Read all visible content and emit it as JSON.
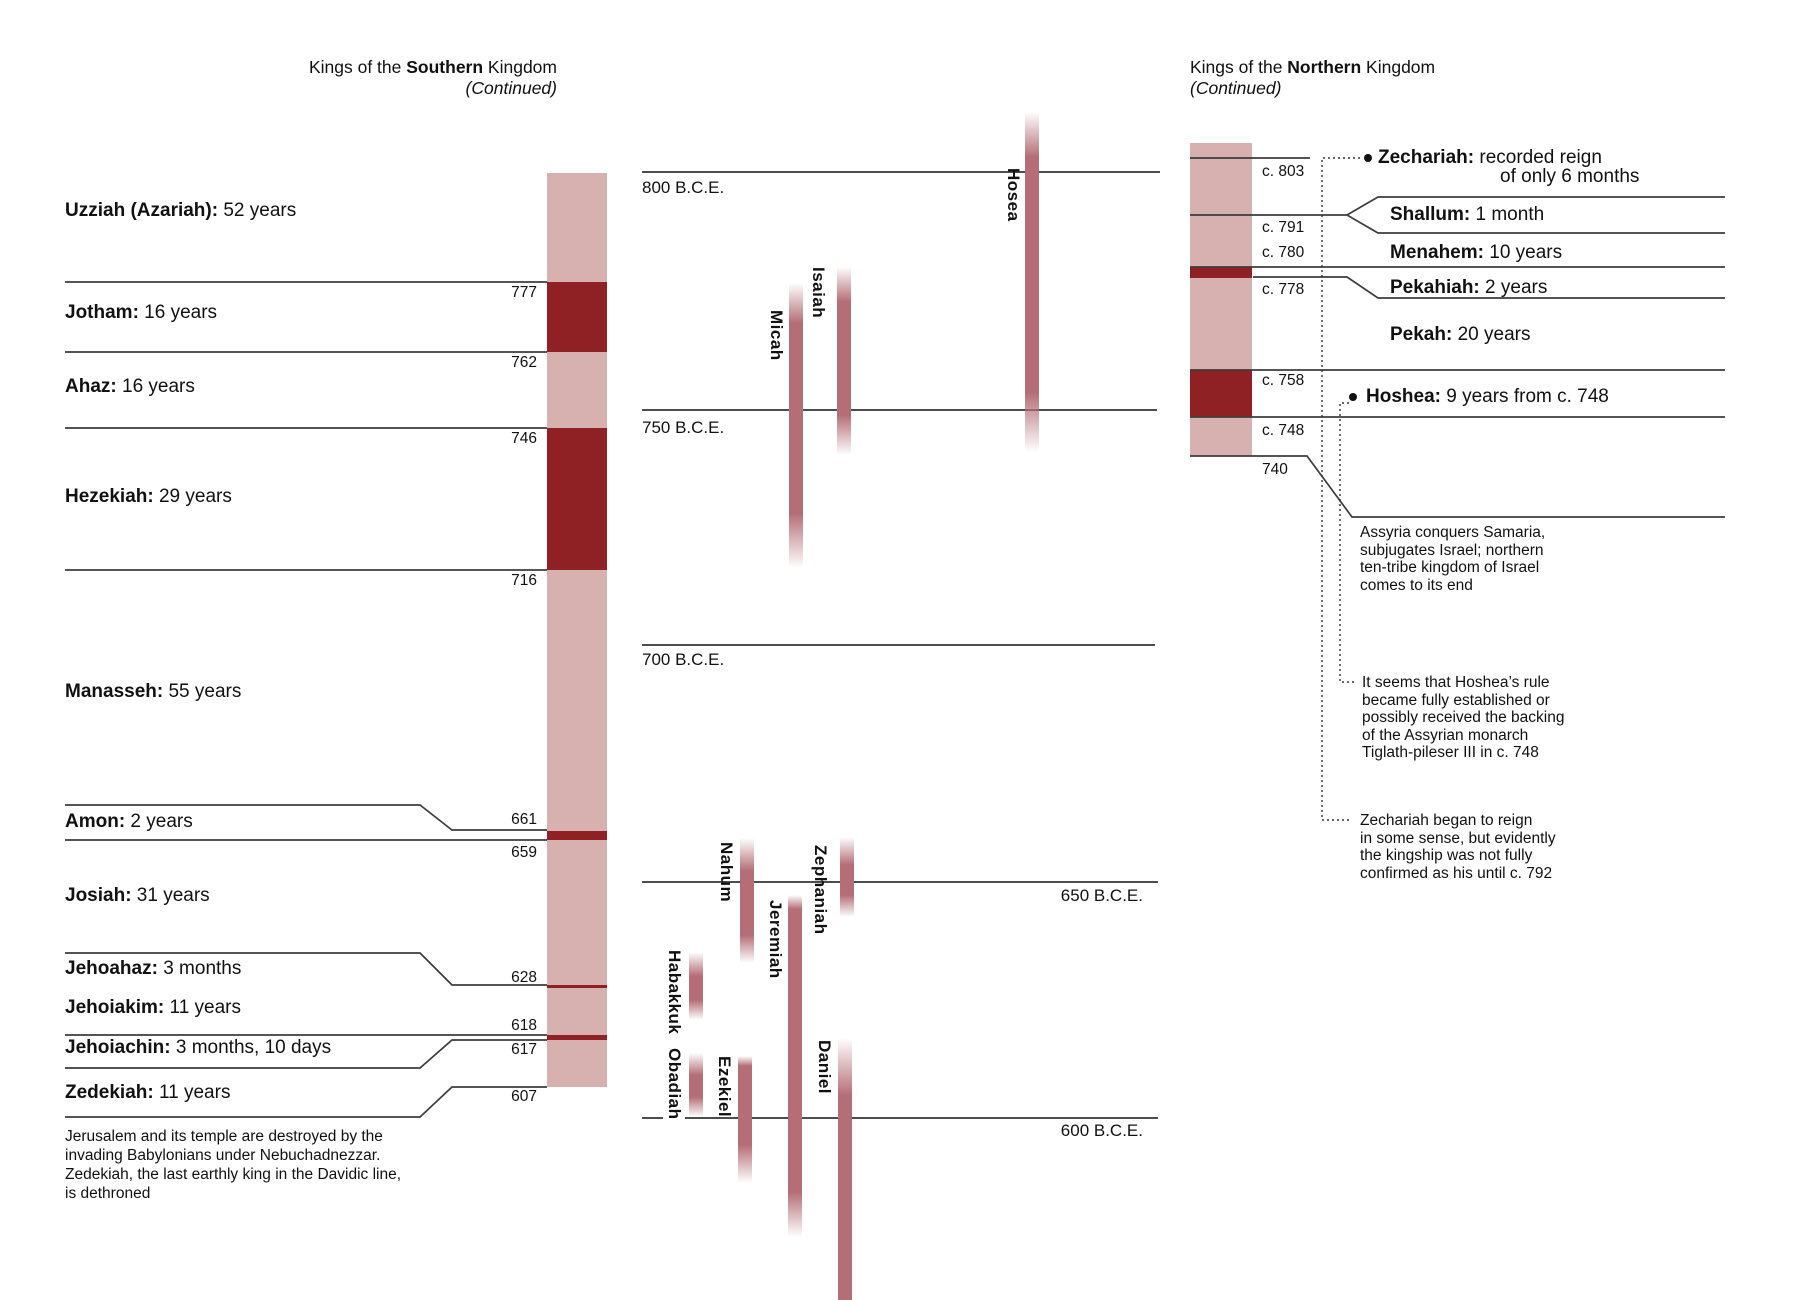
{
  "southern": {
    "title": {
      "prefix": "Kings of the ",
      "bold": "Southern",
      "suffix": " Kingdom",
      "line2": "(Continued)"
    },
    "kings": [
      {
        "name": "Uzziah (Azariah):",
        "detail": " 52 years"
      },
      {
        "name": "Jotham:",
        "detail": " 16 years"
      },
      {
        "name": "Ahaz:",
        "detail": " 16 years"
      },
      {
        "name": "Hezekiah:",
        "detail": " 29 years"
      },
      {
        "name": "Manasseh:",
        "detail": " 55 years"
      },
      {
        "name": "Amon:",
        "detail": " 2 years"
      },
      {
        "name": "Josiah:",
        "detail": " 31 years"
      },
      {
        "name": "Jehoahaz:",
        "detail": " 3 months"
      },
      {
        "name": "Jehoiakim:",
        "detail": " 11 years"
      },
      {
        "name": "Jehoiachin:",
        "detail": " 3 months, 10 days"
      },
      {
        "name": "Zedekiah:",
        "detail": " 11 years"
      }
    ],
    "dates": [
      "777",
      "762",
      "746",
      "716",
      "661",
      "659",
      "628",
      "618",
      "617",
      "607"
    ],
    "note": [
      "Jerusalem and its temple are destroyed by the",
      "invading Babylonians under Nebuchadnezzar.",
      "Zedekiah, the last earthly king in the Davidic line,",
      "is dethroned"
    ]
  },
  "northern": {
    "title": {
      "prefix": "Kings of the ",
      "bold": "Northern",
      "suffix": " Kingdom",
      "line2": "(Continued)"
    },
    "kings": [
      {
        "name": "Zechariah:",
        "detail": " recorded reign",
        "detail2": "of only 6 months"
      },
      {
        "name": "Shallum:",
        "detail": " 1 month"
      },
      {
        "name": "Menahem:",
        "detail": " 10 years"
      },
      {
        "name": "Pekahiah:",
        "detail": " 2 years"
      },
      {
        "name": "Pekah:",
        "detail": " 20 years"
      },
      {
        "name": "Hoshea:",
        "detail": " 9 years from c. 748"
      }
    ],
    "dates": [
      "c. 803",
      "c. 791",
      "c. 780",
      "c. 778",
      "c. 758",
      "c. 748",
      "740"
    ],
    "note_assyria": [
      "Assyria conquers Samaria,",
      "subjugates Israel; northern",
      "ten-tribe kingdom of Israel",
      "comes to its end"
    ],
    "note_hoshea": [
      "It seems that Hoshea’s rule",
      "became fully established or",
      "possibly received the backing",
      "of the Assyrian monarch",
      "Tiglath-pileser III in c. 748"
    ],
    "note_zechariah": [
      "Zechariah began to reign",
      "in some sense, but evidently",
      "the kingship was not fully",
      "confirmed as his until c. 792"
    ]
  },
  "timeline": {
    "labels": [
      "800 B.C.E.",
      "750 B.C.E.",
      "700 B.C.E.",
      "650 B.C.E.",
      "600 B.C.E."
    ]
  },
  "prophets": [
    "Hosea",
    "Micah",
    "Isaiah",
    "Nahum",
    "Zephaniah",
    "Jeremiah",
    "Habakkuk",
    "Obadiah",
    "Ezekiel",
    "Daniel"
  ],
  "colors": {
    "pink": "#d6b1b0",
    "dark_red": "#8f2024",
    "prophet_bar": "#b46e75",
    "gridline": "#4d4d4d",
    "callout": "#3d3d3d"
  }
}
